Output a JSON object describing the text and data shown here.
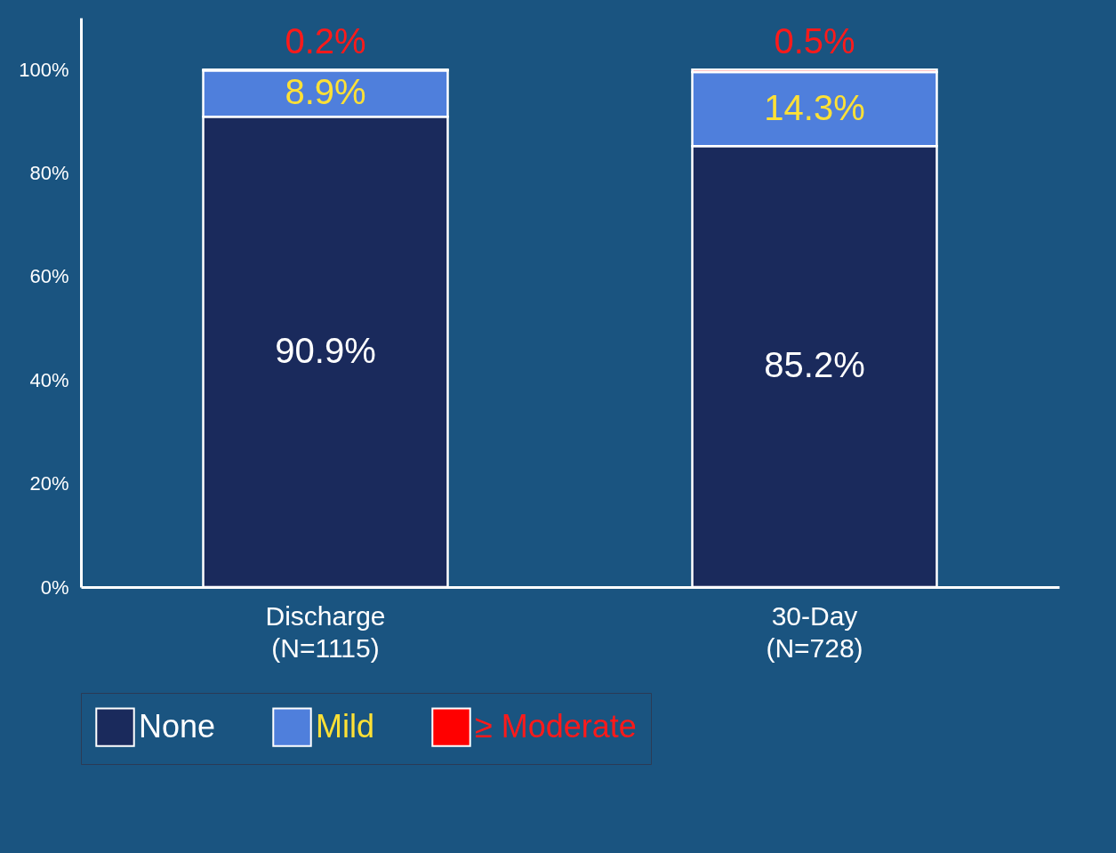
{
  "chart_data": {
    "type": "bar",
    "stacked": true,
    "categories": [
      "Discharge\n(N=1115)",
      "30-Day\n(N=728)"
    ],
    "series": [
      {
        "name": "None",
        "color": "#1a2a5c",
        "values": [
          90.9,
          85.2
        ],
        "value_labels": [
          "90.9%",
          "85.2%"
        ]
      },
      {
        "name": "Mild",
        "color": "#4f7fdc",
        "values": [
          8.9,
          14.3
        ],
        "value_labels": [
          "8.9%",
          "14.3%"
        ]
      },
      {
        "name": "≥ Moderate",
        "color": "#ff0000",
        "values": [
          0.2,
          0.5
        ],
        "value_labels": [
          "0.2%",
          "0.5%"
        ]
      }
    ],
    "ylim": [
      0,
      110
    ],
    "yticks": [
      {
        "value": 0,
        "label": "0%"
      },
      {
        "value": 20,
        "label": "20%"
      },
      {
        "value": 40,
        "label": "40%"
      },
      {
        "value": 60,
        "label": "60%"
      },
      {
        "value": 80,
        "label": "80%"
      },
      {
        "value": 100,
        "label": "100%"
      }
    ],
    "grid": false,
    "legend": "bottom"
  }
}
